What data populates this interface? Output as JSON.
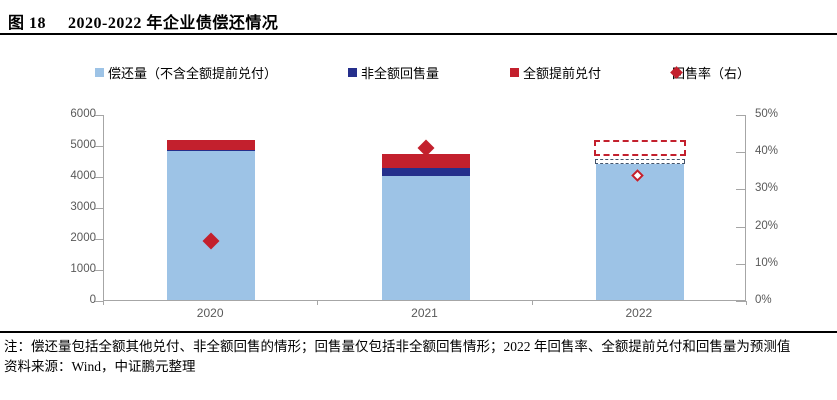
{
  "figure": {
    "label": "图 18",
    "title": "2020-2022 年企业债偿还情况"
  },
  "legend": {
    "items": [
      {
        "label": "偿还量（不含全额提前兑付）",
        "marker": "square",
        "color": "#9DC3E6"
      },
      {
        "label": "非全额回售量",
        "marker": "square",
        "color": "#252F8C"
      },
      {
        "label": "全额提前兑付",
        "marker": "square",
        "color": "#C3202D"
      },
      {
        "label": "回售率（右）",
        "marker": "diamond",
        "color": "#C3202D"
      }
    ]
  },
  "chart_data": {
    "type": "bar",
    "stacked": true,
    "categories": [
      "2020",
      "2021",
      "2022"
    ],
    "series": [
      {
        "name": "偿还量（不含全额提前兑付）",
        "values": [
          4800,
          4000,
          4400
        ],
        "color": "#9DC3E6"
      },
      {
        "name": "非全额回售量",
        "values": [
          50,
          250,
          100
        ],
        "color": "#252F8C"
      },
      {
        "name": "全额提前兑付",
        "values": [
          300,
          450,
          500
        ],
        "color": "#C3202D"
      }
    ],
    "marker_series": {
      "name": "回售率（右）",
      "axis": "right",
      "values_pct": [
        16,
        41,
        33
      ],
      "hollow": [
        false,
        false,
        true
      ],
      "color": "#C3202D"
    },
    "forecast": {
      "category": "2022",
      "dashed_navy_band": [
        4400,
        4500
      ],
      "band_color": "#44546A",
      "dashed_red_box": [
        4650,
        5150
      ],
      "box_color": "#C3202D"
    },
    "left_axis": {
      "min": 0,
      "max": 6000,
      "step": 1000,
      "tick_labels": [
        "0",
        "1000",
        "2000",
        "3000",
        "4000",
        "5000",
        "6000"
      ]
    },
    "right_axis": {
      "min": 0,
      "max": 50,
      "step": 10,
      "tick_labels": [
        "0%",
        "10%",
        "20%",
        "30%",
        "40%",
        "50%"
      ]
    },
    "grid": false,
    "legend_position": "top",
    "title": "2020-2022 年企业债偿还情况"
  },
  "notes": {
    "note": "注：偿还量包括全额其他兑付、非全额回售的情形；回售量仅包括非全额回售情形；2022 年回售率、全额提前兑付和回售量为预测值",
    "source": "资料来源：Wind，中证鹏元整理"
  },
  "colors": {
    "light_blue": "#9DC3E6",
    "navy": "#252F8C",
    "red": "#C3202D",
    "axis": "#A6A6A6",
    "axis_text": "#595959"
  }
}
